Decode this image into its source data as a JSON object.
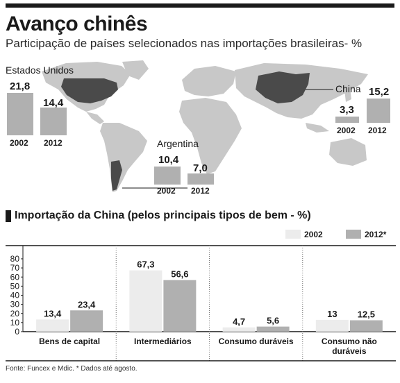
{
  "header": {
    "title": "Avanço chinês",
    "subtitle": "Participação de países selecionados nas importações brasileiras- %"
  },
  "map_section": {
    "countries": [
      {
        "name": "Estados Unidos",
        "values": [
          {
            "year": "2002",
            "value": "21,8"
          },
          {
            "year": "2012",
            "value": "14,4"
          }
        ]
      },
      {
        "name": "China",
        "values": [
          {
            "year": "2002",
            "value": "3,3"
          },
          {
            "year": "2012",
            "value": "15,2"
          }
        ]
      },
      {
        "name": "Argentina",
        "values": [
          {
            "year": "2002",
            "value": "10,4"
          },
          {
            "year": "2012",
            "value": "7,0"
          }
        ]
      }
    ]
  },
  "colors": {
    "year_2002": "#ececec",
    "year_2012": "#b0b0b0",
    "map_land": "#c8c8c8",
    "highlight": "#4a4a4a",
    "dark": "#1a1a1a"
  },
  "icons": {
    "section_marker": "black-square-icon",
    "map": "world-map-icon"
  },
  "section2": {
    "title": "Importação da China (pelos principais tipos de bem - %)",
    "legend": [
      "2002",
      "2012*"
    ]
  },
  "chart_data": {
    "type": "bar",
    "title": "Importação da China (pelos principais tipos de bem - %)",
    "categories": [
      "Bens de capital",
      "Intermediários",
      "Consumo duráveis",
      "Consumo não duráveis"
    ],
    "series": [
      {
        "name": "2002",
        "values": [
          13.4,
          67.3,
          4.7,
          13
        ],
        "labels": [
          "13,4",
          "67,3",
          "4,7",
          "13"
        ]
      },
      {
        "name": "2012*",
        "values": [
          23.4,
          56.6,
          5.6,
          12.5
        ],
        "labels": [
          "23,4",
          "56,6",
          "5,6",
          "12,5"
        ]
      }
    ],
    "yticks": [
      "0",
      "10",
      "20",
      "30",
      "40",
      "50",
      "60",
      "70",
      "80"
    ],
    "ylim": [
      0,
      80
    ],
    "legend_position": "top-right",
    "grid": false
  },
  "footer": {
    "source": "Fonte: Funcex e Mdic. * Dados até agosto."
  }
}
